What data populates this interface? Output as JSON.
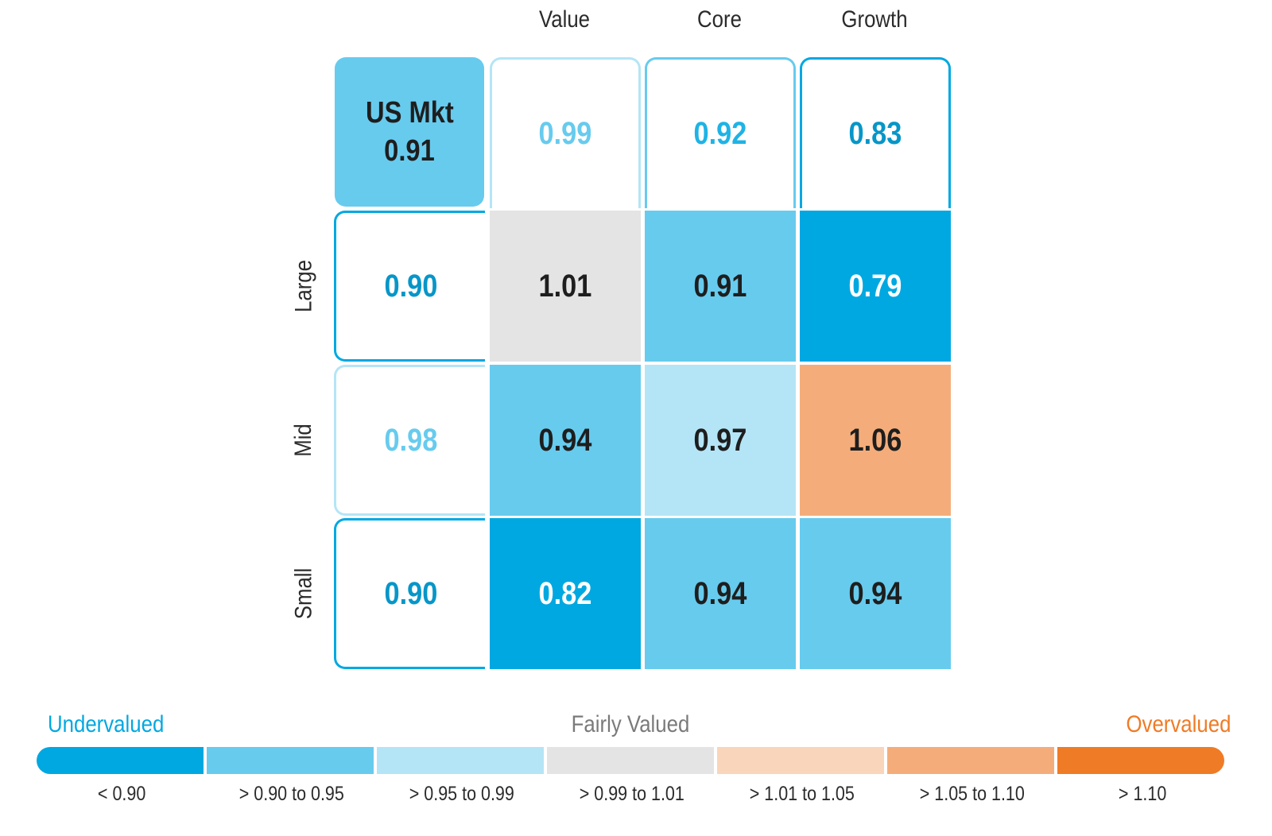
{
  "columns": [
    "Value",
    "Core",
    "Growth"
  ],
  "rows": [
    "Large",
    "Mid",
    "Small"
  ],
  "market": {
    "label": "US Mkt",
    "value": "0.91"
  },
  "column_totals": [
    "0.99",
    "0.92",
    "0.83"
  ],
  "row_totals": [
    "0.90",
    "0.98",
    "0.90"
  ],
  "colors": {
    "dark_blue": "#00a8e1",
    "mid_blue": "#67cbee",
    "light_blue": "#b4e5f6",
    "gray": "#e4e4e4",
    "light_orange": "#f9d5bb",
    "mid_orange": "#f4ad7a",
    "dark_orange": "#ef7b26"
  },
  "legend": {
    "undervalued": "Undervalued",
    "fairly": "Fairly Valued",
    "overvalued": "Overvalued",
    "bins": [
      {
        "label": "< 0.90",
        "color": "#00a8e1"
      },
      {
        "label": "> 0.90 to 0.95",
        "color": "#67cbee"
      },
      {
        "label": "> 0.95 to 0.99",
        "color": "#b4e5f6"
      },
      {
        "label": "> 0.99 to 1.01",
        "color": "#e4e4e4"
      },
      {
        "label": "> 1.01 to 1.05",
        "color": "#f9d5bb"
      },
      {
        "label": "> 1.05 to 1.10",
        "color": "#f4ad7a"
      },
      {
        "label": "> 1.10",
        "color": "#ef7b26"
      }
    ]
  },
  "chart_data": {
    "type": "heatmap",
    "x": [
      "Value",
      "Core",
      "Growth"
    ],
    "y": [
      "Large",
      "Mid",
      "Small"
    ],
    "values": [
      [
        1.01,
        0.91,
        0.79
      ],
      [
        0.94,
        0.97,
        1.06
      ],
      [
        0.82,
        0.94,
        0.94
      ]
    ],
    "labels": [
      [
        "1.01",
        "0.91",
        "0.79"
      ],
      [
        "0.94",
        "0.97",
        "1.06"
      ],
      [
        "0.82",
        "0.94",
        "0.94"
      ]
    ]
  }
}
